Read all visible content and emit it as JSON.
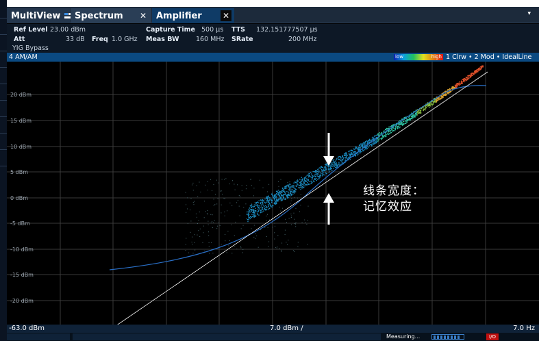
{
  "tabs": [
    {
      "label": "MultiView",
      "icon": "multiview-icon"
    },
    {
      "label": "Spectrum",
      "close": "✕"
    },
    {
      "label": "Amplifier",
      "close": "✕"
    }
  ],
  "tab_menu": "▾",
  "header": {
    "ref_level_label": "Ref Level",
    "ref_level_value": "23.00 dBm",
    "att_label": "Att",
    "att_value": "33 dB",
    "freq_label": "Freq",
    "freq_value": "1.0 GHz",
    "capture_time_label": "Capture Time",
    "capture_time_value": "500 µs",
    "meas_bw_label": "Meas BW",
    "meas_bw_value": "160 MHz",
    "tts_label": "TTS",
    "tts_value": "132.151777507 µs",
    "srate_label": "SRate",
    "srate_value": "200 MHz",
    "yig": "YIG Bypass"
  },
  "diagram": {
    "title": "4 AM/AM",
    "legend_low": "low",
    "legend_high": "high",
    "trace_info": "1 Clrw • 2 Mod • IdealLine",
    "y_ticks": [
      "20 dBm",
      "15 dBm",
      "10 dBm",
      "5 dBm",
      "0 dBm",
      "-5 dBm",
      "-10 dBm",
      "-15 dBm",
      "-20 dBm"
    ],
    "x_start": "-63.0 dBm",
    "x_center": "7.0 dBm /",
    "x_end": "7.0 Hz"
  },
  "status": {
    "text": "Measuring...",
    "badge": "I/O"
  },
  "annotation": {
    "line1": "线条宽度：",
    "line2": "记忆效应"
  },
  "colors": {
    "tab_active": "#0f3b66",
    "title_bar": "#0b4a82",
    "grid": "#3a3a3a",
    "model_trace": "#2a70c8",
    "ideal_line": "#ffffff"
  }
}
